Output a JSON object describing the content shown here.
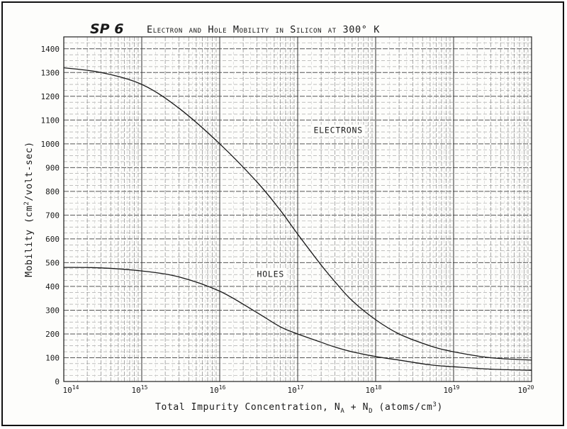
{
  "chart_data": {
    "type": "line",
    "title_number": "SP 6",
    "title": "Electron and Hole Mobility in Silicon at 300° K",
    "x_scale": "log",
    "xlim": [
      100000000000000.0,
      1e+20
    ],
    "ylim": [
      0,
      1450
    ],
    "x_tick_labels": [
      {
        "base": "10",
        "exp": "14",
        "value": 100000000000000.0
      },
      {
        "base": "10",
        "exp": "15",
        "value": 1000000000000000.0
      },
      {
        "base": "10",
        "exp": "16",
        "value": 1e+16
      },
      {
        "base": "10",
        "exp": "17",
        "value": 1e+17
      },
      {
        "base": "10",
        "exp": "18",
        "value": 1e+18
      },
      {
        "base": "10",
        "exp": "19",
        "value": 1e+19
      },
      {
        "base": "10",
        "exp": "20",
        "value": 1e+20
      }
    ],
    "y_ticks": [
      0,
      100,
      200,
      300,
      400,
      500,
      600,
      700,
      800,
      900,
      1000,
      1100,
      1200,
      1300,
      1400
    ],
    "xlabel": {
      "main": "Total Impurity Concentration, N",
      "sub1": "A",
      "mid": " + N",
      "sub2": "D",
      "tail": " (atoms/cm",
      "sup": "3",
      "end": ")"
    },
    "ylabel": {
      "main": "Mobility (cm",
      "sup": "2",
      "tail": "/volt-sec)"
    },
    "grid": true,
    "series": [
      {
        "name": "ELECTRONS",
        "x": [
          100000000000000.0,
          300000000000000.0,
          1000000000000000.0,
          3000000000000000.0,
          1e+16,
          3e+16,
          6e+16,
          1e+17,
          2e+17,
          3e+17,
          5e+17,
          1e+18,
          2e+18,
          5e+18,
          1e+19,
          3e+19,
          1e+20
        ],
        "y": [
          1320,
          1300,
          1250,
          1150,
          1000,
          840,
          720,
          620,
          490,
          420,
          340,
          260,
          200,
          150,
          125,
          100,
          90
        ]
      },
      {
        "name": "HOLES",
        "x": [
          100000000000000.0,
          300000000000000.0,
          1000000000000000.0,
          3000000000000000.0,
          1e+16,
          3e+16,
          6e+16,
          1e+17,
          2e+17,
          3e+17,
          5e+17,
          1e+18,
          2e+18,
          5e+18,
          1e+19,
          3e+19,
          1e+20
        ],
        "y": [
          480,
          478,
          465,
          440,
          380,
          290,
          230,
          200,
          165,
          145,
          125,
          105,
          90,
          70,
          62,
          52,
          47
        ]
      }
    ]
  }
}
